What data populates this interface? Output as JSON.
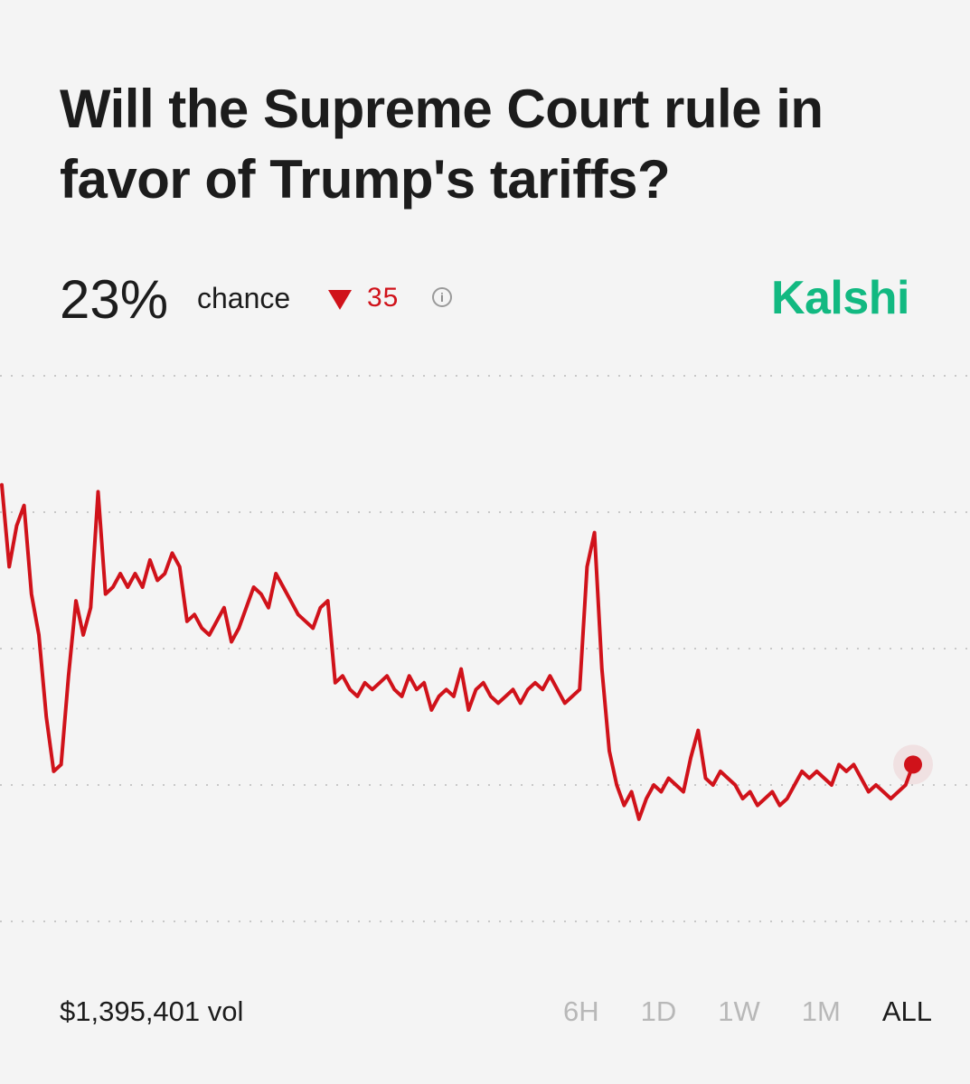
{
  "market": {
    "title": "Will the Supreme Court rule in favor of Trump's tariffs?",
    "chance_value": "23%",
    "chance_label": "chance",
    "delta": "35",
    "delta_direction": "down",
    "brand": "Kalshi"
  },
  "colors": {
    "line": "#d0121a",
    "brand": "#12b981",
    "grid": "#c8c8c8",
    "inactive_range": "#b8b8b8"
  },
  "icons": {
    "delta": "down-triangle-icon",
    "info": "info-icon"
  },
  "footer": {
    "volume": "$1,395,401 vol",
    "ranges": [
      "6H",
      "1D",
      "1W",
      "1M",
      "ALL"
    ],
    "selected_range": "ALL"
  },
  "chart_data": {
    "type": "line",
    "gridlines": "horizontal dotted",
    "current_value": 23,
    "series": [
      {
        "values": [
          64,
          52,
          58,
          61,
          48,
          42,
          30,
          22,
          23,
          36,
          47,
          42,
          46,
          63,
          48,
          49,
          51,
          49,
          51,
          49,
          53,
          50,
          51,
          54,
          52,
          44,
          45,
          43,
          42,
          44,
          46,
          41,
          43,
          46,
          49,
          48,
          46,
          51,
          49,
          47,
          45,
          44,
          43,
          46,
          47,
          35,
          36,
          34,
          33,
          35,
          34,
          35,
          36,
          34,
          33,
          36,
          34,
          35,
          31,
          33,
          34,
          33,
          37,
          31,
          34,
          35,
          33,
          32,
          33,
          34,
          32,
          34,
          35,
          34,
          36,
          34,
          32,
          33,
          34,
          52,
          57,
          37,
          25,
          20,
          17,
          19,
          15,
          18,
          20,
          19,
          21,
          20,
          19,
          24,
          28,
          21,
          20,
          22,
          21,
          20,
          18,
          19,
          17,
          18,
          19,
          17,
          18,
          20,
          22,
          21,
          22,
          21,
          20,
          23,
          22,
          23,
          21,
          19,
          20,
          19,
          18,
          19,
          20,
          23
        ]
      }
    ]
  }
}
